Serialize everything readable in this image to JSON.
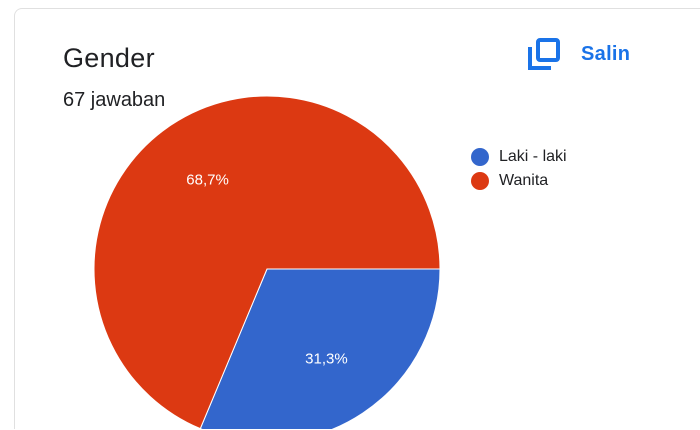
{
  "header": {
    "title": "Gender",
    "responses": "67 jawaban",
    "copy_label": "Salin",
    "copy_icon": "copy-icon"
  },
  "colors": {
    "series_1": "#3366cc",
    "series_2": "#dc3912",
    "accent": "#1a73e8"
  },
  "chart_data": {
    "type": "pie",
    "title": "Gender",
    "subtitle": "67 jawaban",
    "legend_position": "right",
    "series": [
      {
        "name": "Laki - laki",
        "value": 31.3,
        "label": "31,3%",
        "color": "#3366cc"
      },
      {
        "name": "Wanita",
        "value": 68.7,
        "label": "68,7%",
        "color": "#dc3912"
      }
    ]
  }
}
